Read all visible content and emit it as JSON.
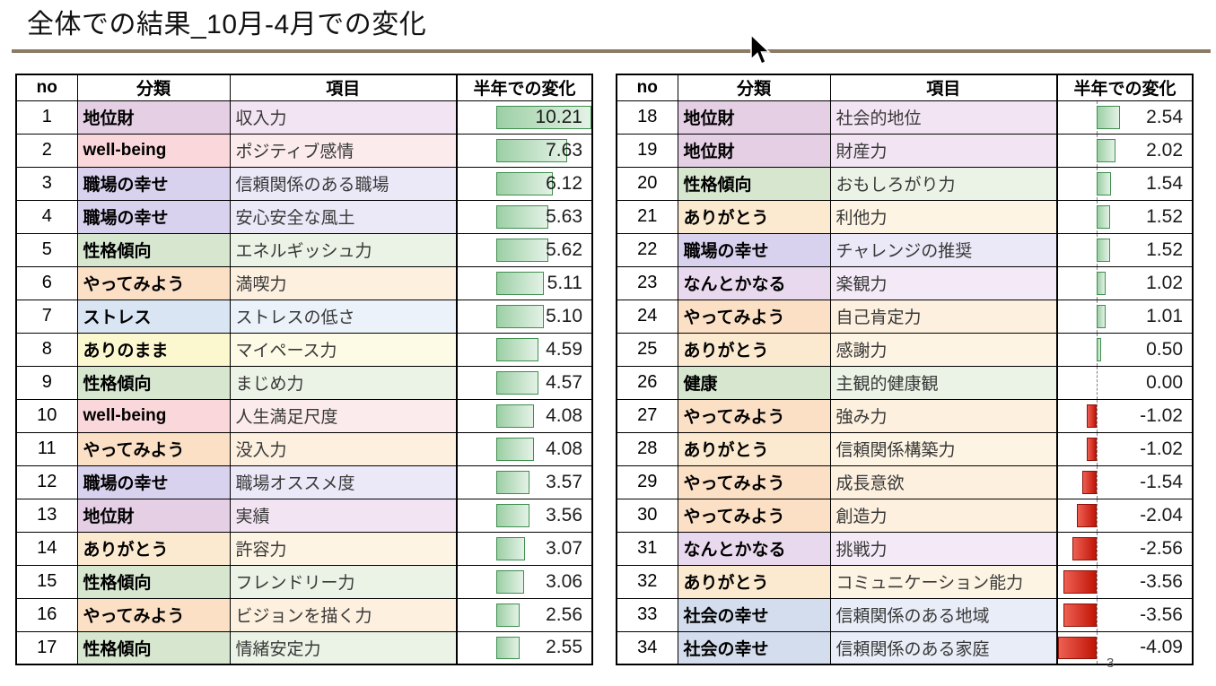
{
  "page": {
    "page_number": "3"
  },
  "chart_data": {
    "type": "table",
    "title": "全体での結果_10月-4月での変化",
    "columns": [
      "no",
      "分類",
      "項目",
      "半年での変化"
    ],
    "bar_axis": {
      "min": -4.09,
      "max": 10.21
    },
    "tables": [
      {
        "name": "left",
        "show_axis": false,
        "rows": [
          [
            1,
            "地位財",
            "収入力",
            10.21
          ],
          [
            2,
            "well-being",
            "ポジティブ感情",
            7.63
          ],
          [
            3,
            "職場の幸せ",
            "信頼関係のある職場",
            6.12
          ],
          [
            4,
            "職場の幸せ",
            "安心安全な風土",
            5.63
          ],
          [
            5,
            "性格傾向",
            "エネルギッシュ力",
            5.62
          ],
          [
            6,
            "やってみよう",
            "満喫力",
            5.11
          ],
          [
            7,
            "ストレス",
            "ストレスの低さ",
            5.1
          ],
          [
            8,
            "ありのまま",
            "マイペース力",
            4.59
          ],
          [
            9,
            "性格傾向",
            "まじめ力",
            4.57
          ],
          [
            10,
            "well-being",
            "人生満足尺度",
            4.08
          ],
          [
            11,
            "やってみよう",
            "没入力",
            4.08
          ],
          [
            12,
            "職場の幸せ",
            "職場オススメ度",
            3.57
          ],
          [
            13,
            "地位財",
            "実績",
            3.56
          ],
          [
            14,
            "ありがとう",
            "許容力",
            3.07
          ],
          [
            15,
            "性格傾向",
            "フレンドリー力",
            3.06
          ],
          [
            16,
            "やってみよう",
            "ビジョンを描く力",
            2.56
          ],
          [
            17,
            "性格傾向",
            "情緒安定力",
            2.55
          ]
        ]
      },
      {
        "name": "right",
        "show_axis": true,
        "rows": [
          [
            18,
            "地位財",
            "社会的地位",
            2.54
          ],
          [
            19,
            "地位財",
            "財産力",
            2.02
          ],
          [
            20,
            "性格傾向",
            "おもしろがり力",
            1.54
          ],
          [
            21,
            "ありがとう",
            "利他力",
            1.52
          ],
          [
            22,
            "職場の幸せ",
            "チャレンジの推奨",
            1.52
          ],
          [
            23,
            "なんとかなる",
            "楽観力",
            1.02
          ],
          [
            24,
            "やってみよう",
            "自己肯定力",
            1.01
          ],
          [
            25,
            "ありがとう",
            "感謝力",
            0.5
          ],
          [
            26,
            "健康",
            "主観的健康観",
            0.0
          ],
          [
            27,
            "やってみよう",
            "強み力",
            -1.02
          ],
          [
            28,
            "ありがとう",
            "信頼関係構築力",
            -1.02
          ],
          [
            29,
            "やってみよう",
            "成長意欲",
            -1.54
          ],
          [
            30,
            "やってみよう",
            "創造力",
            -2.04
          ],
          [
            31,
            "なんとかなる",
            "挑戦力",
            -2.56
          ],
          [
            32,
            "ありがとう",
            "コミュニケーション能力",
            -3.56
          ],
          [
            33,
            "社会の幸せ",
            "信頼関係のある地域",
            -3.56
          ],
          [
            34,
            "社会の幸せ",
            "信頼関係のある家庭",
            -4.09
          ]
        ]
      }
    ]
  },
  "category_colors": {
    "地位財": {
      "cat": "#e5cfe5",
      "item": "#f2e4f2"
    },
    "well-being": {
      "cat": "#f9d7da",
      "item": "#fcebec"
    },
    "職場の幸せ": {
      "cat": "#d8d2ee",
      "item": "#ebe8f8"
    },
    "性格傾向": {
      "cat": "#d6e6cf",
      "item": "#eaf3e5"
    },
    "やってみよう": {
      "cat": "#fbe0c6",
      "item": "#fdf0df"
    },
    "ストレス": {
      "cat": "#d9e5f3",
      "item": "#ebf2fa"
    },
    "ありのまま": {
      "cat": "#fbf7cf",
      "item": "#fdfbe6"
    },
    "ありがとう": {
      "cat": "#fcead0",
      "item": "#fef4e3"
    },
    "なんとかなる": {
      "cat": "#e9d9ee",
      "item": "#f4eaf7"
    },
    "健康": {
      "cat": "#d6e6cf",
      "item": "#eaf3e5"
    },
    "社会の幸せ": {
      "cat": "#d4dded",
      "item": "#e8edf7"
    }
  },
  "bar_colors": {
    "positive_dark": "#9ccfa5",
    "positive_light": "#e4f2e6",
    "positive_border": "#3f8e4f",
    "negative_light": "#ee5f52",
    "negative_dark": "#c01507",
    "negative_border": "#8f1209",
    "axis": "#7f7f7f"
  }
}
